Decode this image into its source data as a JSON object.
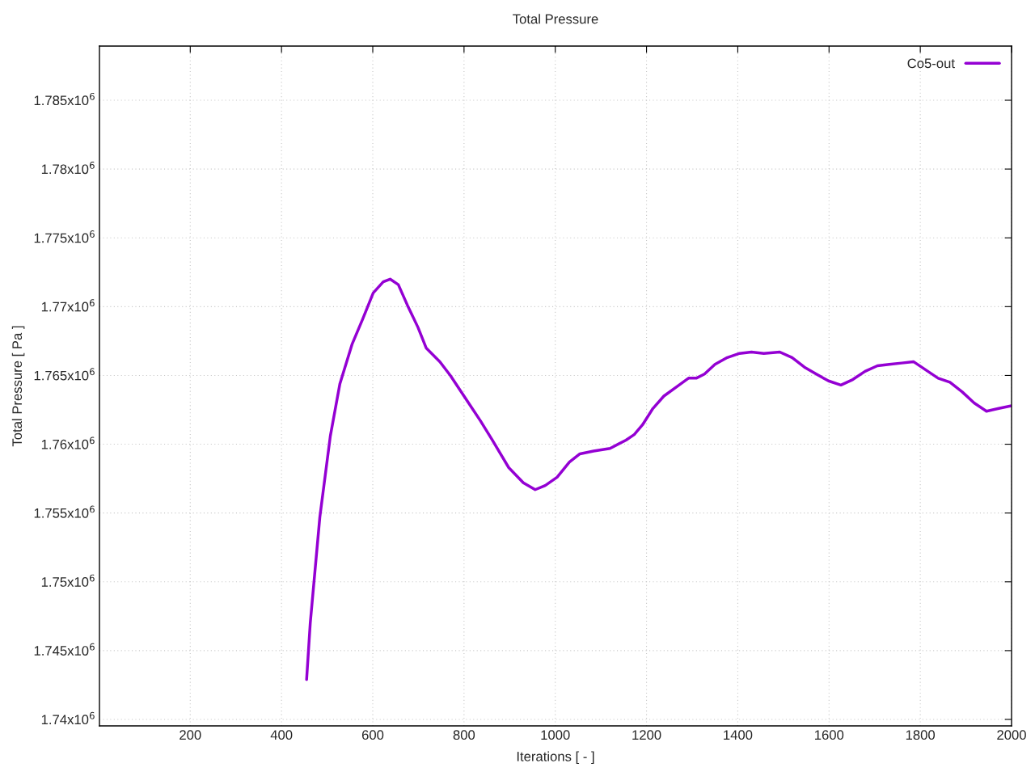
{
  "chart_data": {
    "type": "line",
    "title": "Total Pressure",
    "xlabel": "Iterations [ - ]",
    "ylabel": "Total Pressure [ Pa ]",
    "xlim": [
      1,
      2000
    ],
    "ylim": [
      1739530,
      1788937
    ],
    "xticks": [
      200,
      400,
      600,
      800,
      1000,
      1200,
      1400,
      1600,
      1800,
      2000
    ],
    "yticks": [
      {
        "value": 1740000,
        "label": "1.74x10$^{6}$"
      },
      {
        "value": 1745000,
        "label": "1.745x10$^{6}$"
      },
      {
        "value": 1750000,
        "label": "1.75x10$^{6}$"
      },
      {
        "value": 1755000,
        "label": "1.755x10$^{6}$"
      },
      {
        "value": 1760000,
        "label": "1.76x10$^{6}$"
      },
      {
        "value": 1765000,
        "label": "1.765x10$^{6}$"
      },
      {
        "value": 1770000,
        "label": "1.77x10$^{6}$"
      },
      {
        "value": 1775000,
        "label": "1.775x10$^{6}$"
      },
      {
        "value": 1780000,
        "label": "1.78x10$^{6}$"
      },
      {
        "value": 1785000,
        "label": "1.785x10$^{6}$"
      }
    ],
    "grid": true,
    "legend": "top right",
    "line_style": "solid",
    "series": [
      {
        "name": "Co5-out",
        "color": "#9400d3",
        "x": [
          455,
          463,
          484,
          507,
          528,
          555,
          578,
          601,
          623,
          638,
          656,
          676,
          699,
          717,
          747,
          770,
          800,
          836,
          862,
          898,
          930,
          956,
          978,
          1004,
          1031,
          1054,
          1084,
          1120,
          1155,
          1173,
          1191,
          1214,
          1238,
          1267,
          1292,
          1309,
          1327,
          1350,
          1377,
          1404,
          1430,
          1457,
          1492,
          1519,
          1546,
          1572,
          1599,
          1626,
          1652,
          1679,
          1706,
          1732,
          1759,
          1785,
          1812,
          1839,
          1865,
          1892,
          1918,
          1945,
          1972,
          2000
        ],
        "values": [
          1742900,
          1747000,
          1754700,
          1760600,
          1764400,
          1767300,
          1769100,
          1771000,
          1771800,
          1772000,
          1771600,
          1770100,
          1768500,
          1767000,
          1766000,
          1765000,
          1763500,
          1761700,
          1760300,
          1758300,
          1757200,
          1756700,
          1757000,
          1757600,
          1758700,
          1759300,
          1759500,
          1759700,
          1760300,
          1760700,
          1761400,
          1762600,
          1763500,
          1764200,
          1764800,
          1764800,
          1765100,
          1765800,
          1766300,
          1766600,
          1766700,
          1766600,
          1766700,
          1766300,
          1765600,
          1765100,
          1764600,
          1764300,
          1764700,
          1765300,
          1765700,
          1765800,
          1765900,
          1766000,
          1765400,
          1764800,
          1764500,
          1763800,
          1763000,
          1762400,
          1762600,
          1762800
        ]
      }
    ]
  }
}
